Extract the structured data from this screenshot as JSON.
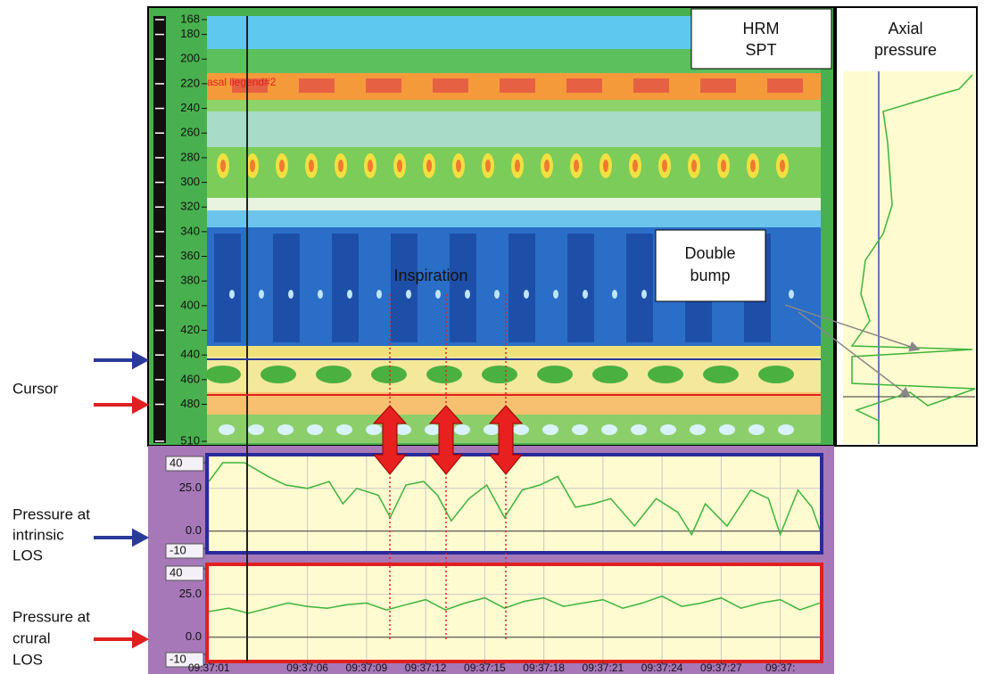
{
  "labels": {
    "cursor": "Cursor",
    "intrinsic": [
      "Pressure at",
      "intrinsic",
      "LOS"
    ],
    "crural": [
      "Pressure at",
      "crural",
      "LOS"
    ],
    "hrm": [
      "HRM",
      "SPT"
    ],
    "axial": [
      "Axial",
      "pressure"
    ],
    "double_bump": [
      "Double",
      "bump"
    ],
    "inspiration": "Inspiration",
    "legend_text": "asal liegend#2"
  },
  "chart_data": [
    {
      "type": "heatmap",
      "ylim": [
        168,
        510
      ],
      "yticks": [
        168,
        180,
        200,
        220,
        240,
        260,
        280,
        300,
        320,
        340,
        360,
        380,
        400,
        420,
        440,
        460,
        480,
        510
      ]
    },
    {
      "type": "line",
      "xlim": [
        0.9,
        32.1
      ],
      "ylim": [
        -10,
        40
      ],
      "yticks": [
        {
          "value": 0,
          "label": "0.0"
        },
        {
          "value": 25,
          "label": "25.0"
        }
      ],
      "x": [
        1.0,
        1.7,
        2.8,
        4.0,
        4.9,
        6.0,
        7.1,
        7.8,
        8.5,
        9.6,
        10.2,
        11.0,
        11.9,
        12.6,
        13.3,
        14.2,
        15.1,
        16.0,
        16.9,
        17.8,
        18.7,
        19.6,
        20.5,
        21.4,
        22.6,
        23.7,
        24.8,
        25.5,
        26.2,
        27.3,
        28.5,
        29.4,
        30.0,
        30.9,
        31.6,
        32.1
      ],
      "series": [
        {
          "color": "#3cb43c",
          "values": [
            29,
            40,
            40,
            32,
            27,
            25,
            29,
            16,
            25,
            21,
            8,
            27,
            29,
            21,
            6,
            19,
            27,
            8,
            24,
            27,
            32,
            14,
            16,
            19,
            3,
            19,
            11,
            -2,
            16,
            3,
            24,
            19,
            -2,
            24,
            14,
            -2
          ]
        }
      ]
    },
    {
      "type": "line",
      "xlim": [
        0.9,
        32.1
      ],
      "ylim": [
        -10,
        40
      ],
      "yticks": [
        {
          "value": 0,
          "label": "0.0"
        },
        {
          "value": 25,
          "label": "25.0"
        }
      ],
      "xticks": [
        {
          "value": 1,
          "label": "09:37:01"
        },
        {
          "value": 6,
          "label": "09:37:06"
        },
        {
          "value": 9,
          "label": "09:37:09"
        },
        {
          "value": 12,
          "label": "09:37:12"
        },
        {
          "value": 15,
          "label": "09:37:15"
        },
        {
          "value": 18,
          "label": "09:37:18"
        },
        {
          "value": 21,
          "label": "09:37:21"
        },
        {
          "value": 24,
          "label": "09:37:24"
        },
        {
          "value": 27,
          "label": "09:37:27"
        },
        {
          "value": 30,
          "label": "09:37:"
        }
      ],
      "x": [
        1,
        2,
        3,
        4,
        5,
        6,
        7,
        8,
        9,
        10,
        11,
        12,
        13,
        14,
        15,
        16,
        17,
        18,
        19,
        20,
        21,
        22,
        23,
        24,
        25,
        26,
        27,
        28,
        29,
        30,
        31,
        32
      ],
      "series": [
        {
          "color": "#3cb43c",
          "values": [
            15,
            17,
            14,
            17,
            20,
            18,
            17,
            19,
            20,
            16,
            19,
            22,
            16,
            20,
            23,
            17,
            21,
            23,
            18,
            20,
            22,
            17,
            20,
            24,
            18,
            20,
            23,
            17,
            20,
            22,
            16,
            20
          ]
        }
      ]
    }
  ]
}
